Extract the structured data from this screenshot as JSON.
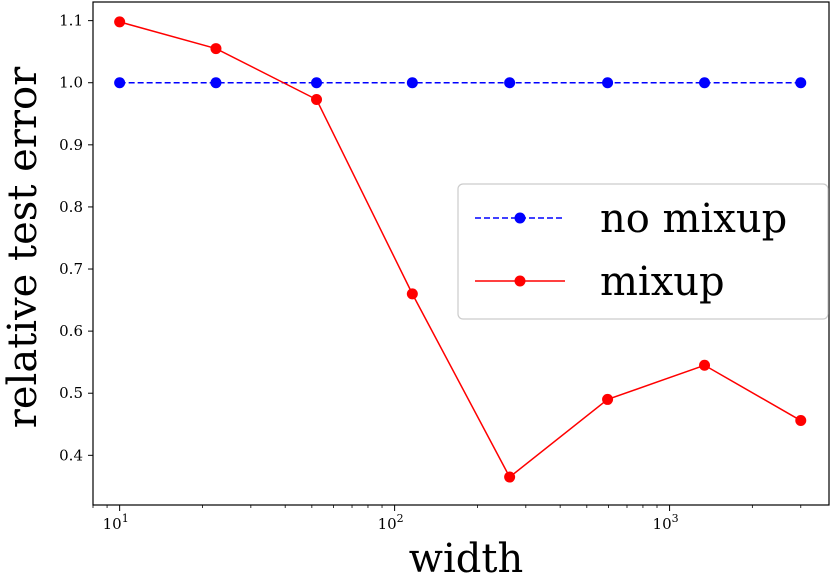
{
  "chart_data": {
    "type": "line",
    "xlabel": "width",
    "ylabel": "relative test error",
    "xscale": "log",
    "xlim": [
      8,
      3800
    ],
    "ylim": [
      0.32,
      1.13
    ],
    "x": [
      10,
      22.4,
      52,
      116,
      262,
      595,
      1340,
      3000
    ],
    "yticks": [
      0.4,
      0.5,
      0.6,
      0.7,
      0.8,
      0.9,
      1.0,
      1.1
    ],
    "ytick_labels": [
      "0.4",
      "0.5",
      "0.6",
      "0.7",
      "0.8",
      "0.9",
      "1.0",
      "1.1"
    ],
    "xticks": [
      10,
      100,
      1000
    ],
    "xtick_labels": [
      {
        "base": "10",
        "exp": "1"
      },
      {
        "base": "10",
        "exp": "2"
      },
      {
        "base": "10",
        "exp": "3"
      }
    ],
    "legend_position": "center-right",
    "series": [
      {
        "name": "no mixup",
        "color": "#0000ff",
        "linestyle": "dashed",
        "marker": "circle",
        "values": [
          1.0,
          1.0,
          1.0,
          1.0,
          1.0,
          1.0,
          1.0,
          1.0
        ]
      },
      {
        "name": "mixup",
        "color": "#ff0000",
        "linestyle": "solid",
        "marker": "circle",
        "values": [
          1.098,
          1.055,
          0.973,
          0.66,
          0.365,
          0.49,
          0.545,
          0.456
        ]
      }
    ]
  }
}
